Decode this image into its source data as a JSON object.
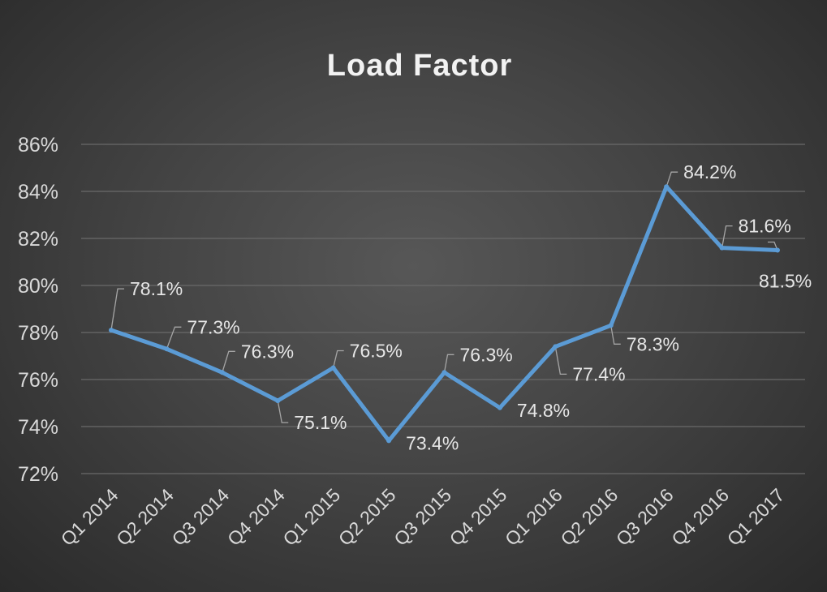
{
  "chart_data": {
    "type": "line",
    "title": "Load Factor",
    "xlabel": "",
    "ylabel": "",
    "categories": [
      "Q1 2014",
      "Q2 2014",
      "Q3 2014",
      "Q4 2014",
      "Q1 2015",
      "Q2 2015",
      "Q3 2015",
      "Q4 2015",
      "Q1 2016",
      "Q2 2016",
      "Q3 2016",
      "Q4 2016",
      "Q1 2017"
    ],
    "series": [
      {
        "name": "Load Factor",
        "values": [
          78.1,
          77.3,
          76.3,
          75.1,
          76.5,
          73.4,
          76.3,
          74.8,
          77.4,
          78.3,
          84.2,
          81.6,
          81.5
        ],
        "color": "#5B9BD5"
      }
    ],
    "data_labels": [
      "78.1%",
      "77.3%",
      "76.3%",
      "75.1%",
      "76.5%",
      "73.4%",
      "76.3%",
      "74.8%",
      "77.4%",
      "78.3%",
      "84.2%",
      "81.6%",
      "81.5%"
    ],
    "ylim": [
      72,
      86
    ],
    "yticks": [
      "72%",
      "74%",
      "76%",
      "78%",
      "80%",
      "82%",
      "84%",
      "86%"
    ],
    "grid": true,
    "legend": "none"
  }
}
